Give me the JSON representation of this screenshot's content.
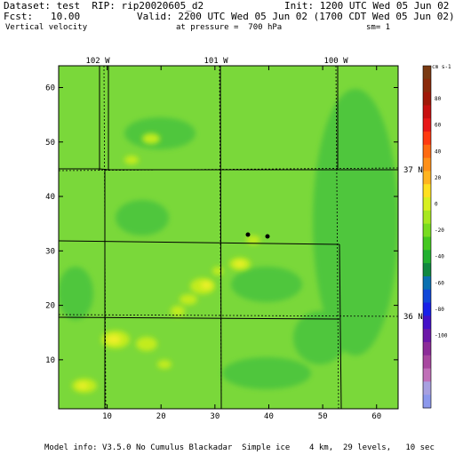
{
  "header": {
    "dataset": "Dataset: test  RIP: rip20020605_d2",
    "init": "Init: 1200 UTC Wed 05 Jun 02",
    "fcst": "Fcst:   10.00",
    "valid": "Valid: 2200 UTC Wed 05 Jun 02 (1700 CDT Wed 05 Jun 02)",
    "field": "Vertical velocity",
    "pressure": "at pressure =  700 hPa",
    "sm": "sm= 1"
  },
  "axes": {
    "x_ticks": [
      "10",
      "20",
      "30",
      "40",
      "50",
      "60"
    ],
    "y_ticks": [
      "10",
      "20",
      "30",
      "40",
      "50",
      "60"
    ],
    "top_lon_labels": [
      "102 W",
      "101 W",
      "100 W"
    ],
    "right_lat_labels": [
      "37 N",
      "36 N"
    ]
  },
  "colorbar": {
    "unit": "cm s-1",
    "labels": [
      "80",
      "60",
      "40",
      "20",
      "0",
      "-20",
      "-40",
      "-60",
      "-80",
      "-100"
    ],
    "colors": [
      "#7a3a12",
      "#8a2a0a",
      "#a01808",
      "#c81010",
      "#e81818",
      "#ff3a10",
      "#ff6a10",
      "#ff9018",
      "#ffb420",
      "#ffe020",
      "#d8f020",
      "#a8e820",
      "#78dc20",
      "#44c820",
      "#22b030",
      "#108840",
      "#0a70b0",
      "#1048d8",
      "#1820e8",
      "#4410c8",
      "#6c18a8",
      "#8c2c98",
      "#a848a0",
      "#c070b8",
      "#a8a0e0",
      "#8c98ec"
    ]
  },
  "map": {
    "field_base_color": "#7ad83a",
    "positive_color": "#c2ec1e",
    "strong_positive_color": "#f0f02a",
    "negative_color": "#50c63e"
  },
  "footer": {
    "model_info": "Model info: V3.5.0 No Cumulus Blackadar  Simple ice    4 km,  29 levels,   10 sec"
  }
}
